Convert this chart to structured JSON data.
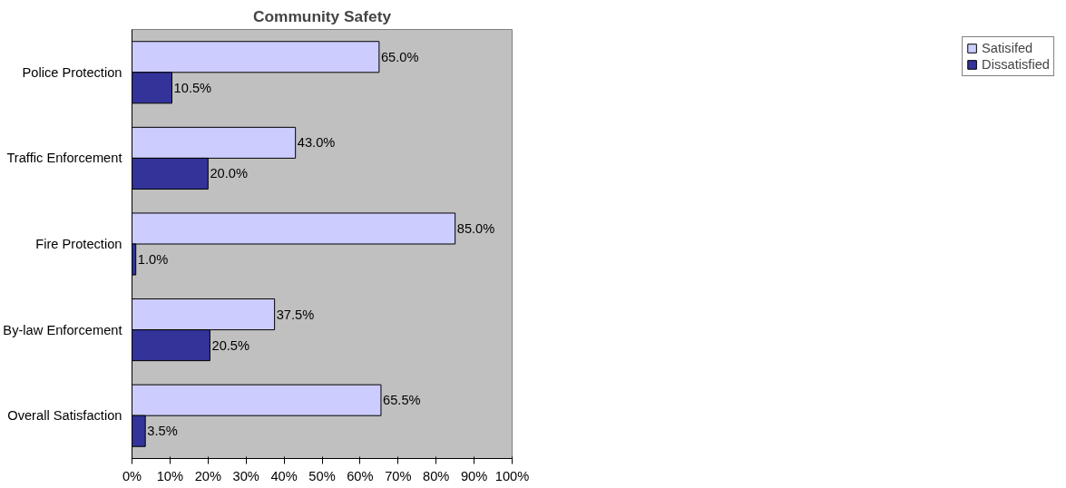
{
  "chart_data": {
    "type": "bar",
    "orientation": "horizontal",
    "title": "Community Safety",
    "categories": [
      "Police Protection",
      "Traffic Enforcement",
      "Fire Protection",
      "By-law Enforcement",
      "Overall Satisfaction"
    ],
    "series": [
      {
        "name": "Satisifed",
        "color": "#ccccff",
        "values": [
          65.0,
          43.0,
          85.0,
          37.5,
          65.5
        ],
        "value_labels": [
          "65.0%",
          "43.0%",
          "85.0%",
          "37.5%",
          "65.5%"
        ]
      },
      {
        "name": "Dissatisfied",
        "color": "#333399",
        "values": [
          10.5,
          20.0,
          1.0,
          20.5,
          3.5
        ],
        "value_labels": [
          "10.5%",
          "20.0%",
          "1.0%",
          "20.5%",
          "3.5%"
        ]
      }
    ],
    "xlim": [
      0,
      100
    ],
    "xticks": [
      {
        "value": 0,
        "label": "0%"
      },
      {
        "value": 10,
        "label": "10%"
      },
      {
        "value": 20,
        "label": "20%"
      },
      {
        "value": 30,
        "label": "30%"
      },
      {
        "value": 40,
        "label": "40%"
      },
      {
        "value": 50,
        "label": "50%"
      },
      {
        "value": 60,
        "label": "60%"
      },
      {
        "value": 70,
        "label": "70%"
      },
      {
        "value": 80,
        "label": "80%"
      },
      {
        "value": 90,
        "label": "90%"
      },
      {
        "value": 100,
        "label": "100%"
      }
    ],
    "grid": false,
    "legend": "right"
  }
}
